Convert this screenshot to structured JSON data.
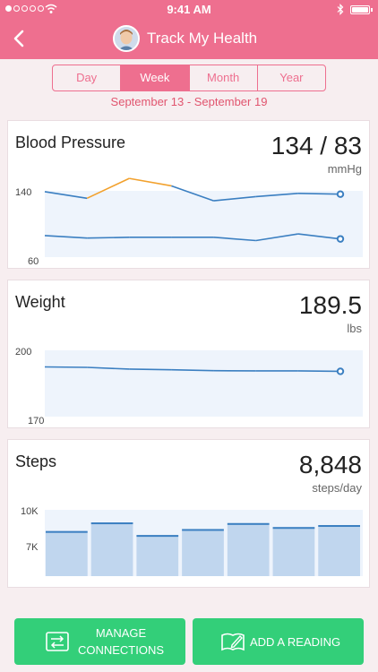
{
  "status_bar": {
    "time": "9:41 AM"
  },
  "header": {
    "title": "Track My Health",
    "back_icon": "chevron-left-icon",
    "background": "#ee6f8f"
  },
  "tabs": [
    {
      "label": "Day"
    },
    {
      "label": "Week",
      "active": true
    },
    {
      "label": "Month"
    },
    {
      "label": "Year"
    }
  ],
  "date_range": "September 13 - September 19",
  "cards": {
    "blood_pressure": {
      "name": "Blood Pressure",
      "value": "134 / 83",
      "unit": "mmHg"
    },
    "weight": {
      "name": "Weight",
      "value": "189.5",
      "unit": "lbs"
    },
    "steps": {
      "name": "Steps",
      "value": "8,848",
      "unit": "steps/day"
    }
  },
  "chart_data": [
    {
      "type": "line",
      "ylim": [
        60,
        140
      ],
      "ytick_labels": [
        "140",
        "60"
      ],
      "series": [
        {
          "values": [
            139,
            131,
            155,
            146,
            128,
            133,
            137,
            136
          ]
        },
        {
          "values": [
            86,
            83,
            84,
            84,
            84,
            80,
            88,
            82
          ]
        }
      ],
      "highlight_segment": [
        1,
        3
      ],
      "colors": {
        "line": "#3b7fc1",
        "highlight": "#f2a12d",
        "band": "#eef4fc"
      }
    },
    {
      "type": "line",
      "ylim": [
        170,
        200
      ],
      "ytick_labels": [
        "200",
        "170"
      ],
      "series": [
        {
          "values": [
            192.5,
            192.3,
            191.5,
            191.2,
            190.8,
            190.7,
            190.7,
            190.5
          ]
        }
      ],
      "colors": {
        "line": "#3b7fc1",
        "band": "#eef4fc"
      }
    },
    {
      "type": "bar",
      "ylim": [
        5000,
        10000
      ],
      "ytick_labels": [
        "10K",
        "7K"
      ],
      "values": [
        8400,
        9050,
        8100,
        8550,
        9000,
        8700,
        8850
      ],
      "colors": {
        "bar": "#c0d6ee",
        "bar_top": "#3b7fc1",
        "band": "#eef4fc"
      }
    }
  ],
  "buttons": {
    "manage_line1": "MANAGE",
    "manage_line2": "CONNECTIONS",
    "add_reading": "ADD A READING",
    "color": "#33cf79"
  }
}
